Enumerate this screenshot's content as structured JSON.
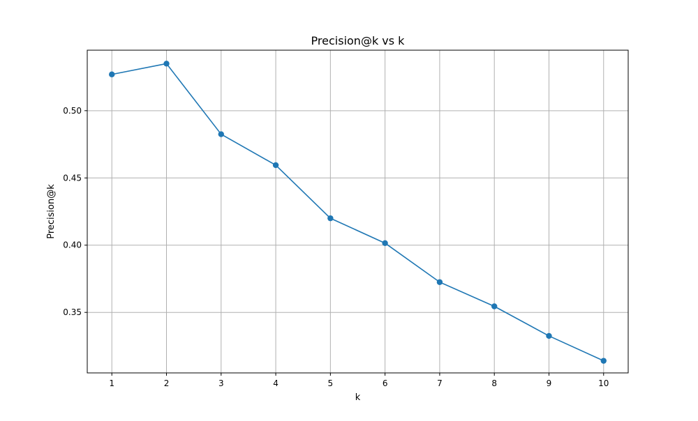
{
  "chart_data": {
    "type": "line",
    "title": "Precision@k vs k",
    "xlabel": "k",
    "ylabel": "Precision@k",
    "x": [
      1,
      2,
      3,
      4,
      5,
      6,
      7,
      8,
      9,
      10
    ],
    "xticks": [
      1,
      2,
      3,
      4,
      5,
      6,
      7,
      8,
      9,
      10
    ],
    "xtick_labels": [
      "1",
      "2",
      "3",
      "4",
      "5",
      "6",
      "7",
      "8",
      "9",
      "10"
    ],
    "yticks": [
      0.35,
      0.4,
      0.45,
      0.5
    ],
    "ytick_labels": [
      "0.35",
      "0.40",
      "0.45",
      "0.50"
    ],
    "xlim": [
      0.55,
      10.45
    ],
    "ylim": [
      0.305,
      0.545
    ],
    "grid": true,
    "series": [
      {
        "values": [
          0.527,
          0.535,
          0.4825,
          0.4595,
          0.42,
          0.4015,
          0.3725,
          0.3545,
          0.3325,
          0.314
        ],
        "color": "#1f77b4",
        "marker": "circle"
      }
    ]
  }
}
